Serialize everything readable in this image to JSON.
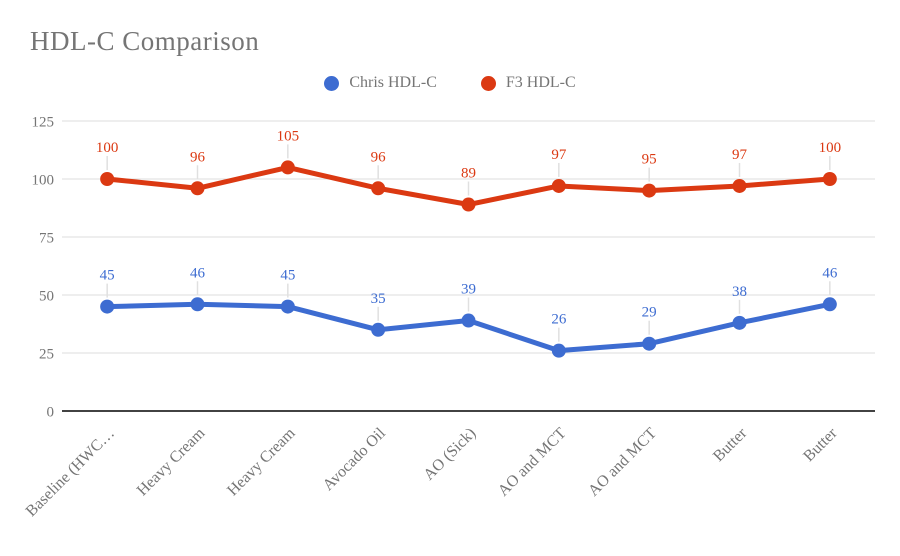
{
  "title": "HDL-C Comparison",
  "legend": {
    "position": "top",
    "items": [
      {
        "label": "Chris HDL-C",
        "color": "#3d6cd1"
      },
      {
        "label": "F3 HDL-C",
        "color": "#db3912"
      }
    ]
  },
  "chart_data": {
    "type": "line",
    "title": "HDL-C Comparison",
    "xlabel": "",
    "ylabel": "",
    "categories": [
      "Baseline (HWC…",
      "Heavy Cream",
      "Heavy Cream",
      "Avocado Oil",
      "AO (Sick)",
      "AO and MCT",
      "AO and MCT",
      "Butter",
      "Butter"
    ],
    "series": [
      {
        "name": "Chris HDL-C",
        "color": "#3d6cd1",
        "values": [
          45,
          46,
          45,
          35,
          39,
          26,
          29,
          38,
          46
        ]
      },
      {
        "name": "F3 HDL-C",
        "color": "#db3912",
        "values": [
          100,
          96,
          105,
          96,
          89,
          97,
          95,
          97,
          100
        ]
      }
    ],
    "point_labels": true,
    "y_ticks": [
      0,
      25,
      50,
      75,
      100,
      125
    ],
    "ylim": [
      0,
      125
    ],
    "grid": true,
    "legend_position": "top"
  },
  "colors": {
    "title_text": "#757575",
    "tick_text": "#757575",
    "gridline": "#dedede",
    "zero_axis": "#424242",
    "annotation_stem": "#e0e0e0",
    "background": "#ffffff"
  }
}
